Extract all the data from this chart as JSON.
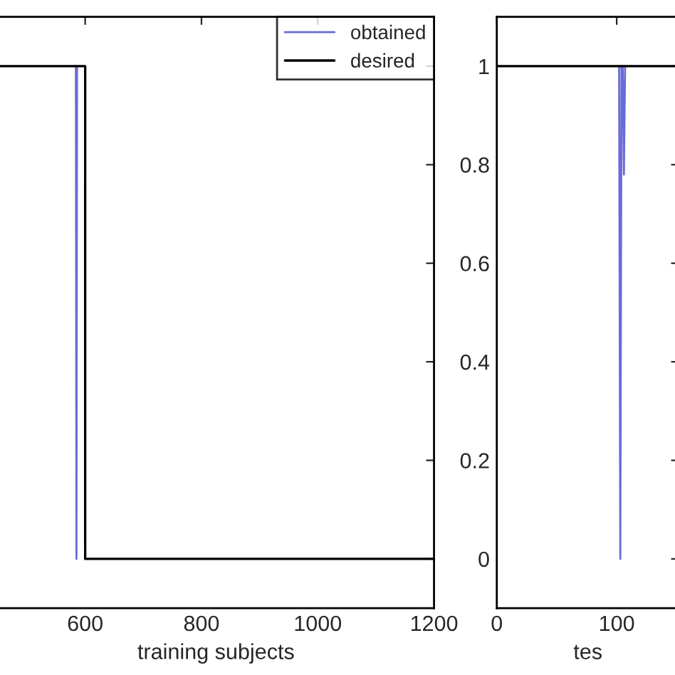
{
  "chart_data": [
    {
      "type": "line",
      "xlabel": "training subjects",
      "xlim": [
        450,
        1200
      ],
      "xticks": [
        600,
        800,
        1000,
        1200
      ],
      "ylim": [
        -0.1,
        1.1
      ],
      "yticks": [
        {
          "value": 0,
          "label": null
        },
        {
          "value": 0.2,
          "label": null
        },
        {
          "value": 0.4,
          "label": null
        },
        {
          "value": 0.6,
          "label": null
        },
        {
          "value": 0.8,
          "label": null
        },
        {
          "value": 1,
          "label": null
        }
      ],
      "tick_labels": "x",
      "legend": "top right",
      "grid": false,
      "series": [
        {
          "name": "obtained",
          "color": "#6a6ad8",
          "x": [
            584,
            585,
            586
          ],
          "values": [
            1,
            0,
            1
          ]
        },
        {
          "name": "desired",
          "color": "#000000",
          "x": [
            450,
            600,
            600,
            1200
          ],
          "values": [
            1,
            1,
            0,
            0
          ]
        }
      ]
    },
    {
      "type": "line",
      "xlabel": "tes",
      "xlim": [
        0,
        152
      ],
      "xticks": [
        0,
        100
      ],
      "ylim": [
        -0.1,
        1.1
      ],
      "yticks": [
        0,
        0.2,
        0.4,
        0.6,
        0.8,
        1
      ],
      "grid": false,
      "series": [
        {
          "color": "#6a6ad8",
          "x": [
            102,
            103,
            104,
            105,
            106,
            107
          ],
          "values": [
            1,
            0,
            1,
            1,
            0.78,
            1
          ]
        },
        {
          "color": "#000000",
          "x": [
            0,
            152
          ],
          "values": [
            1,
            1
          ]
        }
      ]
    }
  ]
}
